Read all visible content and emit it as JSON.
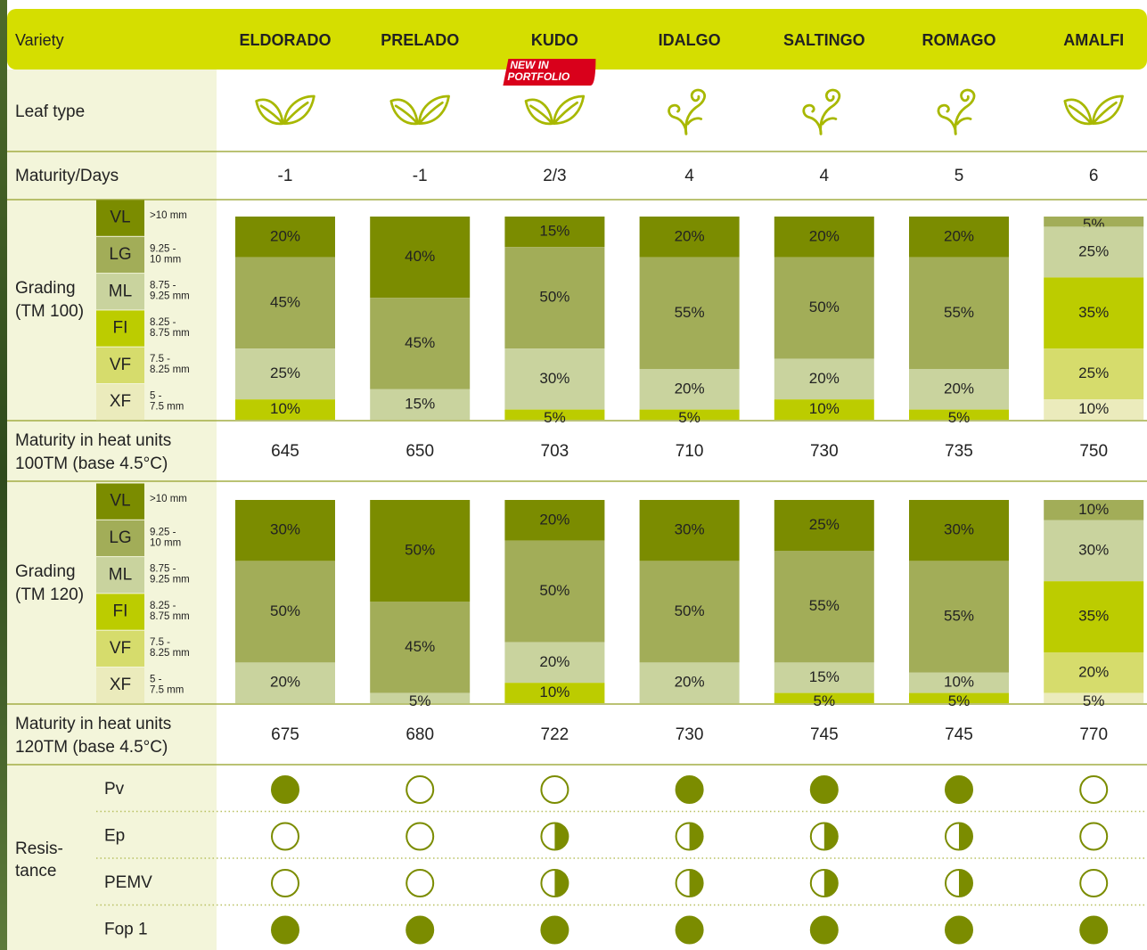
{
  "header": {
    "label": "Variety",
    "varieties": [
      "ELDORADO",
      "PRELADO",
      "KUDO",
      "IDALGO",
      "SALTINGO",
      "ROMAGO",
      "AMALFI"
    ]
  },
  "badge": {
    "lines": [
      "NEW IN",
      "PORTFOLIO"
    ]
  },
  "leaf_type": {
    "label": "Leaf type"
  },
  "maturity_days": {
    "label": "Maturity/Days",
    "values": [
      -1,
      -1,
      "2/3",
      4,
      4,
      5,
      6
    ]
  },
  "grade_classes": [
    {
      "code": "VL",
      "range": [
        ">10 mm"
      ]
    },
    {
      "code": "LG",
      "range": [
        "9.25 -",
        "10 mm"
      ]
    },
    {
      "code": "ML",
      "range": [
        "8.75 -",
        "9.25 mm"
      ]
    },
    {
      "code": "FI",
      "range": [
        "8.25 -",
        "8.75 mm"
      ]
    },
    {
      "code": "VF",
      "range": [
        "7.5 -",
        "8.25 mm"
      ]
    },
    {
      "code": "XF",
      "range": [
        "5 -",
        "7.5 mm"
      ]
    }
  ],
  "gradings": [
    {
      "label": [
        "Grading",
        "(TM 100)"
      ],
      "bars": [
        {
          "values": [
            20,
            45,
            25,
            10,
            null,
            null
          ],
          "value_labels": [
            "20%",
            "45%",
            "25%",
            "10%",
            null,
            null
          ]
        },
        {
          "values": [
            40,
            45,
            15,
            null,
            null,
            null
          ],
          "value_labels": [
            "40%",
            "45%",
            "15%",
            null,
            null,
            null
          ]
        },
        {
          "values": [
            15,
            50,
            30,
            5,
            null,
            null
          ],
          "value_labels": [
            "15%",
            "50%",
            "30%",
            "5%",
            null,
            null
          ]
        },
        {
          "values": [
            20,
            55,
            20,
            5,
            null,
            null
          ],
          "value_labels": [
            "20%",
            "55%",
            "20%",
            "5%",
            null,
            null
          ]
        },
        {
          "values": [
            20,
            50,
            20,
            10,
            null,
            null
          ],
          "value_labels": [
            "20%",
            "50%",
            "20%",
            "10%",
            null,
            null
          ]
        },
        {
          "values": [
            20,
            55,
            20,
            5,
            null,
            null
          ],
          "value_labels": [
            "20%",
            "55%",
            "20%",
            "5%",
            null,
            null
          ]
        },
        {
          "values": [
            null,
            5,
            25,
            35,
            25,
            10
          ],
          "value_labels": [
            null,
            "5%",
            "25%",
            "35%",
            "25%",
            "10%"
          ]
        }
      ]
    },
    {
      "label": [
        "Grading",
        "(TM 120)"
      ],
      "bars": [
        {
          "values": [
            30,
            50,
            20,
            null,
            null,
            null
          ],
          "value_labels": [
            "30%",
            "50%",
            "20%",
            null,
            null,
            null
          ]
        },
        {
          "values": [
            50,
            45,
            5,
            null,
            null,
            null
          ],
          "value_labels": [
            "50%",
            "45%",
            "5%",
            null,
            null,
            null
          ]
        },
        {
          "values": [
            20,
            50,
            20,
            10,
            null,
            null
          ],
          "value_labels": [
            "20%",
            "50%",
            "20%",
            "10%",
            null,
            null
          ]
        },
        {
          "values": [
            30,
            50,
            20,
            null,
            null,
            null
          ],
          "value_labels": [
            "30%",
            "50%",
            "20%",
            null,
            null,
            null
          ]
        },
        {
          "values": [
            25,
            55,
            15,
            5,
            null,
            null
          ],
          "value_labels": [
            "25%",
            "55%",
            "15%",
            "5%",
            null,
            null
          ]
        },
        {
          "values": [
            30,
            55,
            10,
            5,
            null,
            null
          ],
          "value_labels": [
            "30%",
            "55%",
            "10%",
            "5%",
            null,
            null
          ]
        },
        {
          "values": [
            null,
            10,
            30,
            35,
            20,
            5
          ],
          "value_labels": [
            null,
            "10%",
            "30%",
            "35%",
            "20%",
            "5%"
          ]
        }
      ]
    }
  ],
  "heat_units": [
    {
      "label": [
        "Maturity in heat units",
        "100TM (base 4.5°C)"
      ],
      "values": [
        645,
        650,
        703,
        710,
        730,
        735,
        750
      ]
    },
    {
      "label": [
        "Maturity in heat units",
        "120TM (base 4.5°C)"
      ],
      "values": [
        675,
        680,
        722,
        730,
        745,
        745,
        770
      ]
    }
  ],
  "resistance": {
    "label": [
      "Resis-",
      "tance"
    ],
    "rows": [
      {
        "name": "Pv",
        "values": [
          1,
          0,
          0,
          1,
          1,
          1,
          0
        ]
      },
      {
        "name": "Ep",
        "values": [
          0,
          0,
          0.5,
          0.5,
          0.5,
          0.5,
          0
        ]
      },
      {
        "name": "PEMV",
        "values": [
          0,
          0,
          0.5,
          0.5,
          0.5,
          0.5,
          0
        ]
      },
      {
        "name": "Fop 1",
        "values": [
          1,
          1,
          1,
          1,
          1,
          1,
          1
        ]
      }
    ]
  }
}
